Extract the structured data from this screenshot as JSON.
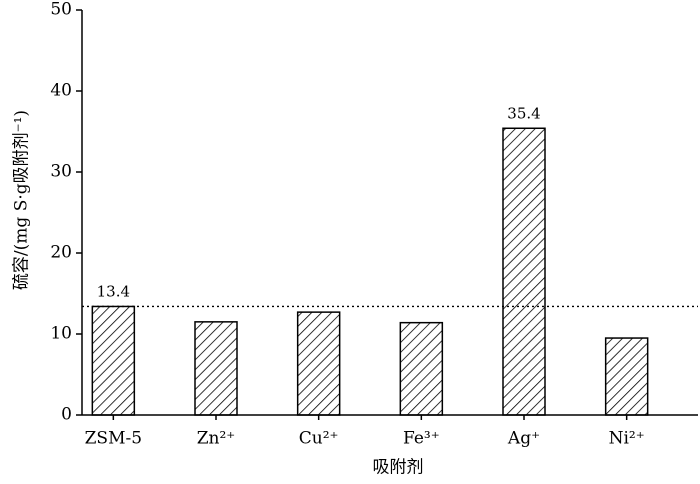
{
  "chart_data": {
    "type": "bar",
    "x_label": "吸附剂",
    "y_label": "硫容/(mg S·g吸附剂⁻¹)",
    "categories": [
      "ZSM-5",
      "Zn²⁺",
      "Cu²⁺",
      "Fe³⁺",
      "Ag⁺",
      "Ni²⁺"
    ],
    "values": [
      13.4,
      11.5,
      12.7,
      11.4,
      35.4,
      9.5
    ],
    "labeled_indices": [
      0,
      4
    ],
    "reference_line": 13.4,
    "color": "#000000",
    "ylim": [
      0,
      50
    ],
    "yticks": [
      0,
      10,
      20,
      30,
      40,
      50
    ],
    "grid": false
  }
}
